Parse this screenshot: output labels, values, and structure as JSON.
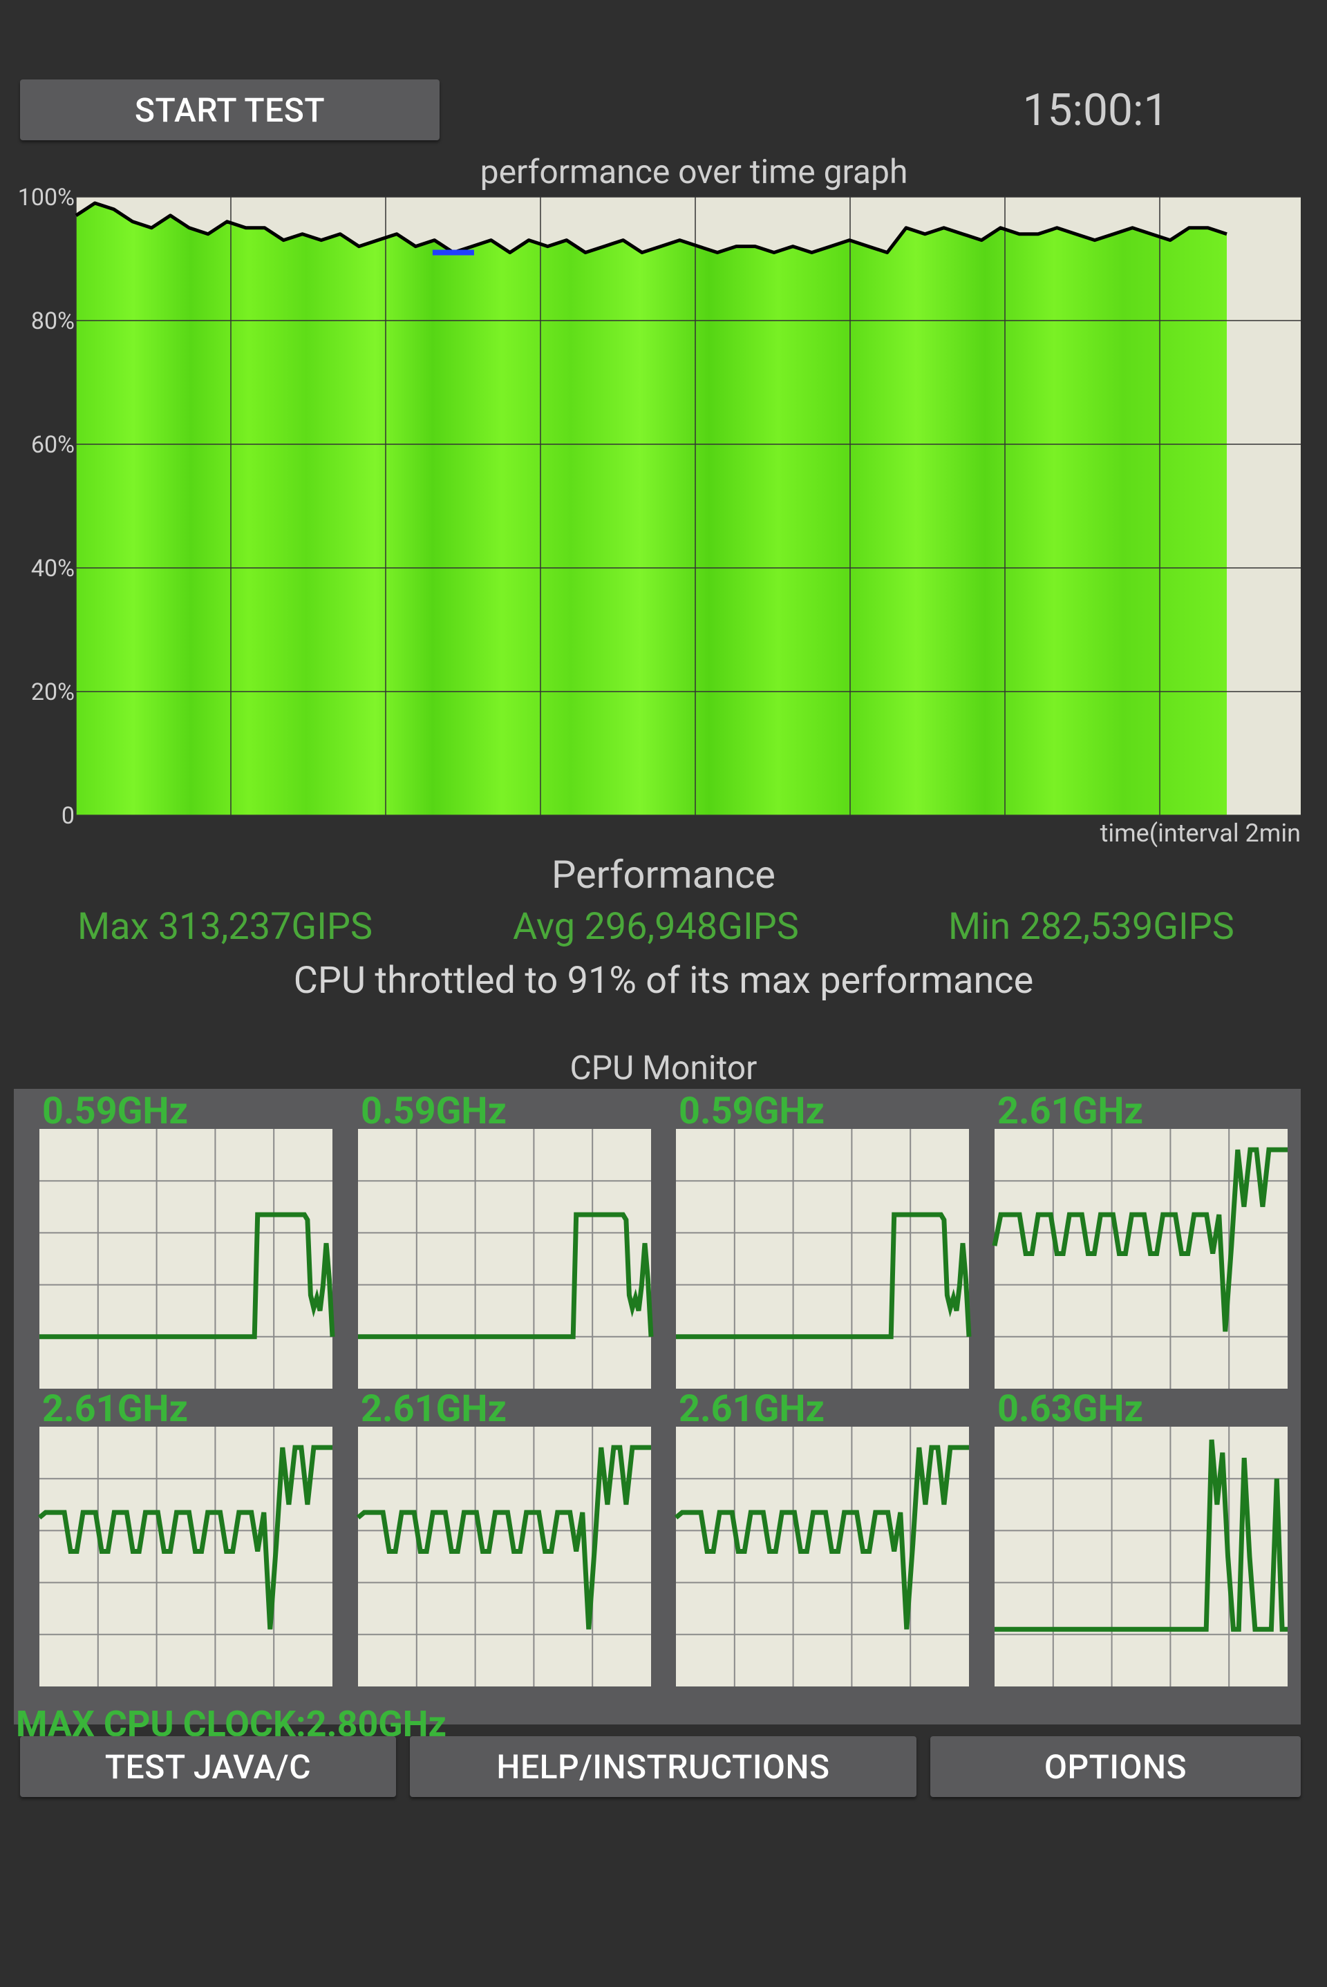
{
  "header": {
    "start_label": "START TEST",
    "timer": "15:00:1"
  },
  "graph": {
    "title": "performance over time graph",
    "x_label": "time(interval 2min",
    "y_ticks": [
      "100%",
      "80%",
      "60%",
      "40%",
      "20%",
      "0"
    ]
  },
  "chart_data": {
    "type": "area",
    "title": "performance over time graph",
    "xlabel": "time(interval 2min",
    "ylabel": "",
    "ylim": [
      0,
      100
    ],
    "x_unit": "min",
    "x_range": [
      0,
      15
    ],
    "grid": true,
    "series": [
      {
        "values": [
          97,
          99,
          98,
          96,
          95,
          97,
          95,
          94,
          96,
          95,
          95,
          93,
          94,
          93,
          94,
          92,
          93,
          94,
          92,
          93,
          91,
          92,
          93,
          91,
          93,
          92,
          93,
          91,
          92,
          93,
          91,
          92,
          93,
          92,
          91,
          92,
          92,
          91,
          92,
          91,
          92,
          93,
          92,
          91,
          95,
          94,
          95,
          94,
          93,
          95,
          94,
          94,
          95,
          94,
          93,
          94,
          95,
          94,
          93,
          95,
          95,
          94
        ]
      }
    ]
  },
  "performance": {
    "heading": "Performance",
    "max": "Max 313,237GIPS",
    "avg": "Avg 296,948GIPS",
    "min": "Min 282,539GIPS",
    "throttle": "CPU throttled to 91% of its max performance",
    "colors": {
      "stats": "#4aa83a",
      "fill": "#6fe81e",
      "line": "#000000",
      "marker": "#2040ff"
    }
  },
  "cpu_monitor": {
    "title": "CPU Monitor",
    "max_clock": "MAX CPU CLOCK:2.80GHz",
    "line_color": "#1e7a1e",
    "cores": [
      {
        "freq": "0.59GHz",
        "load": [
          0.2,
          0.2,
          0.2,
          0.2,
          0.2,
          0.2,
          0.2,
          0.2,
          0.2,
          0.2,
          0.2,
          0.2,
          0.2,
          0.2,
          0.2,
          0.2,
          0.2,
          0.2,
          0.2,
          0.2,
          0.2,
          0.2,
          0.2,
          0.2,
          0.2,
          0.2,
          0.2,
          0.2,
          0.2,
          0.2,
          0.2,
          0.2,
          0.2,
          0.2,
          0.2,
          0.2,
          0.2,
          0.2,
          0.2,
          0.2,
          0.2,
          0.2,
          0.2,
          0.2,
          0.2,
          0.2,
          0.2,
          0.2,
          0.2,
          0.2,
          0.2,
          0.2,
          0.2,
          0.2,
          0.2,
          0.2,
          0.2,
          0.2,
          0.2,
          0.2,
          0.2,
          0.2,
          0.2,
          0.2,
          0.2,
          0.2,
          0.2,
          0.2,
          0.2,
          0.2,
          0.67,
          0.67,
          0.67,
          0.67,
          0.67,
          0.67,
          0.67,
          0.67,
          0.67,
          0.67,
          0.67,
          0.67,
          0.67,
          0.67,
          0.67,
          0.67,
          0.65,
          0.36,
          0.31,
          0.35,
          0.3,
          0.4,
          0.56,
          0.42,
          0.2
        ]
      },
      {
        "freq": "0.59GHz",
        "load": [
          0.2,
          0.2,
          0.2,
          0.2,
          0.2,
          0.2,
          0.2,
          0.2,
          0.2,
          0.2,
          0.2,
          0.2,
          0.2,
          0.2,
          0.2,
          0.2,
          0.2,
          0.2,
          0.2,
          0.2,
          0.2,
          0.2,
          0.2,
          0.2,
          0.2,
          0.2,
          0.2,
          0.2,
          0.2,
          0.2,
          0.2,
          0.2,
          0.2,
          0.2,
          0.2,
          0.2,
          0.2,
          0.2,
          0.2,
          0.2,
          0.2,
          0.2,
          0.2,
          0.2,
          0.2,
          0.2,
          0.2,
          0.2,
          0.2,
          0.2,
          0.2,
          0.2,
          0.2,
          0.2,
          0.2,
          0.2,
          0.2,
          0.2,
          0.2,
          0.2,
          0.2,
          0.2,
          0.2,
          0.2,
          0.2,
          0.2,
          0.2,
          0.2,
          0.2,
          0.2,
          0.67,
          0.67,
          0.67,
          0.67,
          0.67,
          0.67,
          0.67,
          0.67,
          0.67,
          0.67,
          0.67,
          0.67,
          0.67,
          0.67,
          0.67,
          0.67,
          0.65,
          0.36,
          0.31,
          0.35,
          0.3,
          0.4,
          0.56,
          0.42,
          0.2
        ]
      },
      {
        "freq": "0.59GHz",
        "load": [
          0.2,
          0.2,
          0.2,
          0.2,
          0.2,
          0.2,
          0.2,
          0.2,
          0.2,
          0.2,
          0.2,
          0.2,
          0.2,
          0.2,
          0.2,
          0.2,
          0.2,
          0.2,
          0.2,
          0.2,
          0.2,
          0.2,
          0.2,
          0.2,
          0.2,
          0.2,
          0.2,
          0.2,
          0.2,
          0.2,
          0.2,
          0.2,
          0.2,
          0.2,
          0.2,
          0.2,
          0.2,
          0.2,
          0.2,
          0.2,
          0.2,
          0.2,
          0.2,
          0.2,
          0.2,
          0.2,
          0.2,
          0.2,
          0.2,
          0.2,
          0.2,
          0.2,
          0.2,
          0.2,
          0.2,
          0.2,
          0.2,
          0.2,
          0.2,
          0.2,
          0.2,
          0.2,
          0.2,
          0.2,
          0.2,
          0.2,
          0.2,
          0.2,
          0.2,
          0.2,
          0.67,
          0.67,
          0.67,
          0.67,
          0.67,
          0.67,
          0.67,
          0.67,
          0.67,
          0.67,
          0.67,
          0.67,
          0.67,
          0.67,
          0.67,
          0.67,
          0.65,
          0.36,
          0.31,
          0.35,
          0.3,
          0.4,
          0.56,
          0.42,
          0.2
        ]
      },
      {
        "freq": "2.61GHz",
        "load": [
          0.55,
          0.67,
          0.67,
          0.67,
          0.67,
          0.52,
          0.52,
          0.67,
          0.67,
          0.67,
          0.52,
          0.52,
          0.67,
          0.67,
          0.67,
          0.52,
          0.52,
          0.67,
          0.67,
          0.67,
          0.52,
          0.52,
          0.67,
          0.67,
          0.67,
          0.52,
          0.52,
          0.67,
          0.67,
          0.67,
          0.52,
          0.52,
          0.67,
          0.67,
          0.67,
          0.52,
          0.67,
          0.22,
          0.55,
          0.92,
          0.7,
          0.92,
          0.92,
          0.7,
          0.92,
          0.92,
          0.92,
          0.92
        ]
      },
      {
        "freq": "2.61GHz",
        "load": [
          0.65,
          0.67,
          0.67,
          0.67,
          0.67,
          0.52,
          0.52,
          0.67,
          0.67,
          0.67,
          0.52,
          0.52,
          0.67,
          0.67,
          0.67,
          0.52,
          0.52,
          0.67,
          0.67,
          0.67,
          0.52,
          0.52,
          0.67,
          0.67,
          0.67,
          0.52,
          0.52,
          0.67,
          0.67,
          0.67,
          0.52,
          0.52,
          0.67,
          0.67,
          0.67,
          0.52,
          0.67,
          0.22,
          0.55,
          0.92,
          0.7,
          0.92,
          0.92,
          0.7,
          0.92,
          0.92,
          0.92,
          0.92
        ]
      },
      {
        "freq": "2.61GHz",
        "load": [
          0.65,
          0.67,
          0.67,
          0.67,
          0.67,
          0.52,
          0.52,
          0.67,
          0.67,
          0.67,
          0.52,
          0.52,
          0.67,
          0.67,
          0.67,
          0.52,
          0.52,
          0.67,
          0.67,
          0.67,
          0.52,
          0.52,
          0.67,
          0.67,
          0.67,
          0.52,
          0.52,
          0.67,
          0.67,
          0.67,
          0.52,
          0.52,
          0.67,
          0.67,
          0.67,
          0.52,
          0.67,
          0.22,
          0.55,
          0.92,
          0.7,
          0.92,
          0.92,
          0.7,
          0.92,
          0.92,
          0.92,
          0.92
        ]
      },
      {
        "freq": "2.61GHz",
        "load": [
          0.65,
          0.67,
          0.67,
          0.67,
          0.67,
          0.52,
          0.52,
          0.67,
          0.67,
          0.67,
          0.52,
          0.52,
          0.67,
          0.67,
          0.67,
          0.52,
          0.52,
          0.67,
          0.67,
          0.67,
          0.52,
          0.52,
          0.67,
          0.67,
          0.67,
          0.52,
          0.52,
          0.67,
          0.67,
          0.67,
          0.52,
          0.52,
          0.67,
          0.67,
          0.67,
          0.52,
          0.67,
          0.22,
          0.55,
          0.92,
          0.7,
          0.92,
          0.92,
          0.7,
          0.92,
          0.92,
          0.92,
          0.92
        ]
      },
      {
        "freq": "0.63GHz",
        "load": [
          0.22,
          0.22,
          0.22,
          0.22,
          0.22,
          0.22,
          0.22,
          0.22,
          0.22,
          0.22,
          0.22,
          0.22,
          0.22,
          0.22,
          0.22,
          0.22,
          0.22,
          0.22,
          0.22,
          0.22,
          0.22,
          0.22,
          0.22,
          0.22,
          0.22,
          0.22,
          0.22,
          0.22,
          0.22,
          0.22,
          0.22,
          0.22,
          0.22,
          0.22,
          0.22,
          0.22,
          0.22,
          0.22,
          0.22,
          0.22,
          0.95,
          0.7,
          0.9,
          0.5,
          0.22,
          0.22,
          0.88,
          0.5,
          0.22,
          0.22,
          0.22,
          0.22,
          0.8,
          0.22,
          0.22
        ]
      }
    ]
  },
  "footer": {
    "java_label": "TEST JAVA/C",
    "help_label": "HELP/INSTRUCTIONS",
    "options_label": "OPTIONS"
  }
}
